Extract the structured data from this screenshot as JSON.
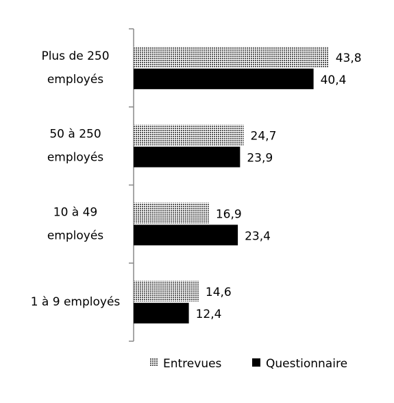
{
  "chart_data": {
    "type": "bar",
    "orientation": "horizontal",
    "categories": [
      [
        "Plus de 250",
        "employés"
      ],
      [
        "50 à 250",
        "employés"
      ],
      [
        "10 à 49",
        "employés"
      ],
      [
        "1 à 9 employés"
      ]
    ],
    "series": [
      {
        "name": "Entrevues",
        "color": "#8c8c8c",
        "pattern": "checker",
        "values": [
          43.8,
          24.7,
          16.9,
          14.6
        ],
        "value_labels": [
          "43,8",
          "24,7",
          "16,9",
          "14,6"
        ]
      },
      {
        "name": "Questionnaire",
        "color": "#000000",
        "values": [
          40.4,
          23.9,
          23.4,
          12.4
        ],
        "value_labels": [
          "40,4",
          "23,9",
          "23,4",
          "12,4"
        ]
      }
    ],
    "legend": "bottom"
  }
}
